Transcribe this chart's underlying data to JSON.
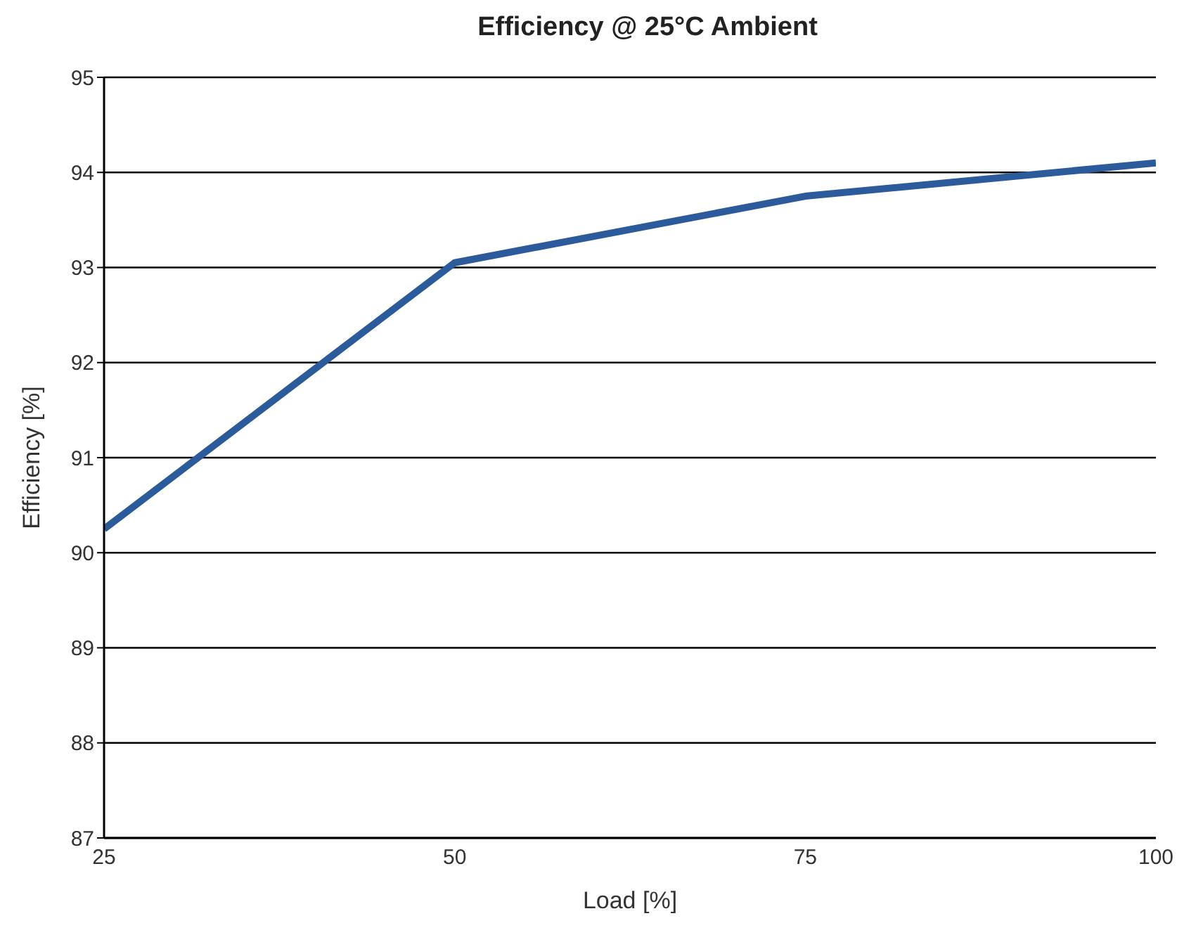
{
  "chart_data": {
    "type": "line",
    "title": "Efficiency @ 25°C Ambient",
    "xlabel": "Load [%]",
    "ylabel": "Efficiency [%]",
    "x": [
      25,
      50,
      75,
      100
    ],
    "series": [
      {
        "color": "#2b5b9b",
        "values": [
          90.25,
          93.05,
          93.75,
          94.1
        ]
      }
    ],
    "xlim": [
      25,
      100
    ],
    "xticks": [
      25,
      50,
      75,
      100
    ],
    "ylim": [
      87,
      95
    ],
    "yticks": [
      87,
      88,
      89,
      90,
      91,
      92,
      93,
      94,
      95
    ],
    "grid": "y",
    "legend": false,
    "marker": "none",
    "line_style": "solid"
  }
}
